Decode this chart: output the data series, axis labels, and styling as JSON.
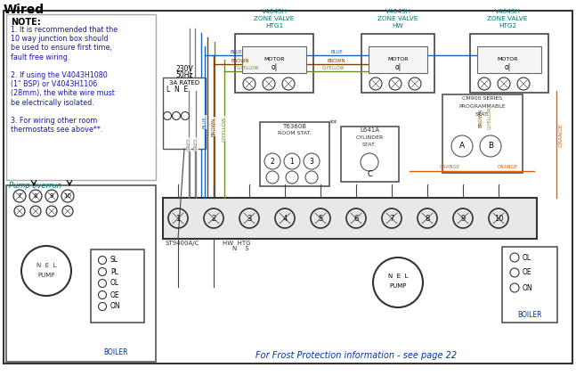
{
  "title": "Wired",
  "bg_color": "#ffffff",
  "footer_text": "For Frost Protection information - see page 22",
  "note_lines": [
    "1. It is recommended that the",
    "10 way junction box should",
    "be used to ensure first time,",
    "fault free wiring.",
    "",
    "2. If using the V4043H1080",
    "(1\" BSP) or V4043H1106",
    "(28mm), the white wire must",
    "be electrically isolated.",
    "",
    "3. For wiring other room",
    "thermostats see above**."
  ],
  "colors": {
    "grey": "#808080",
    "blue": "#1565C0",
    "brown": "#7B3F00",
    "orange": "#E65C00",
    "gyellow": "#6B8E23",
    "teal": "#007070",
    "black": "#1a1a1a",
    "note_blue": "#1a1aaa",
    "dark_blue": "#003399"
  }
}
